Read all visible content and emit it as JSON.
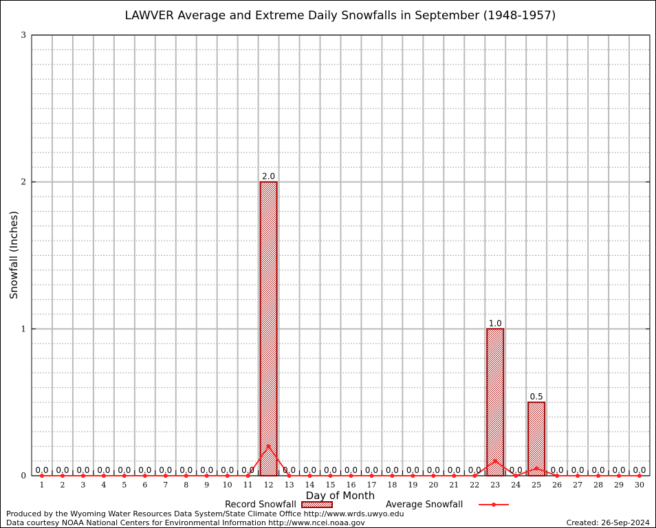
{
  "chart_data": {
    "type": "bar",
    "title": "LAWVER Average and Extreme Daily Snowfalls in September (1948-1957)",
    "xlabel": "Day of Month",
    "ylabel": "Snowfall (Inches)",
    "ylim": [
      0,
      3
    ],
    "yticks": [
      0,
      1,
      2,
      3
    ],
    "grid": true,
    "legend_placement": "bottom",
    "categories": [
      1,
      2,
      3,
      4,
      5,
      6,
      7,
      8,
      9,
      10,
      11,
      12,
      13,
      14,
      15,
      16,
      17,
      18,
      19,
      20,
      21,
      22,
      23,
      24,
      25,
      26,
      27,
      28,
      29,
      30
    ],
    "series": [
      {
        "name": "Record Snowfall",
        "type": "bar",
        "color": "#a00000",
        "values": [
          0,
          0,
          0,
          0,
          0,
          0,
          0,
          0,
          0,
          0,
          0,
          2.0,
          0,
          0,
          0,
          0,
          0,
          0,
          0,
          0,
          0,
          0,
          1.0,
          0,
          0.5,
          0,
          0,
          0,
          0,
          0
        ],
        "labels": [
          "0.0",
          "0.0",
          "0.0",
          "0.0",
          "0.0",
          "0.0",
          "0.0",
          "0.0",
          "0.0",
          "0.0",
          "0.0",
          "2.0",
          "0.0",
          "0.0",
          "0.0",
          "0.0",
          "0.0",
          "0.0",
          "0.0",
          "0.0",
          "0.0",
          "0.0",
          "1.0",
          "0.0",
          "0.5",
          "0.0",
          "0.0",
          "0.0",
          "0.0",
          "0.0"
        ]
      },
      {
        "name": "Average Snowfall",
        "type": "line",
        "color": "#ff2020",
        "values": [
          0,
          0,
          0,
          0,
          0,
          0,
          0,
          0,
          0,
          0,
          0,
          0.2,
          0,
          0,
          0,
          0,
          0,
          0,
          0,
          0,
          0,
          0,
          0.1,
          0,
          0.05,
          0,
          0,
          0,
          0,
          0
        ]
      }
    ]
  },
  "footer": {
    "produced": "Produced by the Wyoming Water Resources Data System/State Climate Office http://www.wrds.uwyo.edu",
    "courtesy": "Data courtesy NOAA National Centers for Environmental Information http://www.ncei.noaa.gov",
    "created": "Created:  26-Sep-2024"
  }
}
